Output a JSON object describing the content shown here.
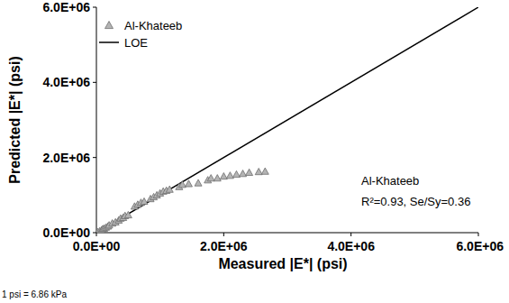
{
  "chart_data": {
    "type": "scatter",
    "x_label": "Measured |E*| (psi)",
    "y_label": "Predicted |E*| (psi)",
    "xlim": [
      0,
      6000000
    ],
    "ylim": [
      0,
      6000000
    ],
    "xticks": [
      {
        "value": 0,
        "label": "0.0E+00"
      },
      {
        "value": 2000000,
        "label": "2.0E+06"
      },
      {
        "value": 4000000,
        "label": "4.0E+06"
      },
      {
        "value": 6000000,
        "label": "6.0E+06"
      }
    ],
    "yticks": [
      {
        "value": 0,
        "label": "0.0E+00"
      },
      {
        "value": 2000000,
        "label": "2.0E+06"
      },
      {
        "value": 4000000,
        "label": "4.0E+06"
      },
      {
        "value": 6000000,
        "label": "6.0E+06"
      }
    ],
    "grid": false,
    "legend": "top-left",
    "series": [
      {
        "name": "Al-Khateeb",
        "type": "scatter",
        "marker": "triangle",
        "color": "#b4b4b4",
        "x": [
          20000,
          50000,
          80000,
          100000,
          120000,
          150000,
          180000,
          200000,
          250000,
          300000,
          350000,
          380000,
          420000,
          450000,
          500000,
          600000,
          650000,
          700000,
          750000,
          850000,
          900000,
          950000,
          1000000,
          1050000,
          1100000,
          1150000,
          1300000,
          1350000,
          1450000,
          1600000,
          1750000,
          1800000,
          1900000,
          2000000,
          2100000,
          2200000,
          2300000,
          2400000,
          2550000,
          2650000
        ],
        "values": [
          20000,
          40000,
          70000,
          100000,
          110000,
          140000,
          170000,
          200000,
          250000,
          280000,
          330000,
          380000,
          400000,
          450000,
          470000,
          700000,
          750000,
          800000,
          830000,
          900000,
          950000,
          1000000,
          1050000,
          1100000,
          1120000,
          1150000,
          1220000,
          1280000,
          1300000,
          1320000,
          1400000,
          1450000,
          1450000,
          1500000,
          1520000,
          1550000,
          1570000,
          1600000,
          1620000,
          1630000
        ]
      },
      {
        "name": "LOE",
        "type": "line",
        "line_style": "solid",
        "color": "#000000",
        "x": [
          0,
          6000000
        ],
        "values": [
          0,
          6000000
        ]
      }
    ],
    "annotations": [
      "Al-Khateeb",
      "R²=0.93, Se/Sy=0.36",
      "1 psi = 6.86 kPa"
    ]
  }
}
